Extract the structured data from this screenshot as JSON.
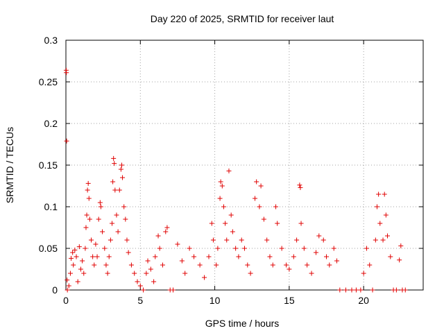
{
  "chart_data": {
    "type": "scatter",
    "title": "Day 220 of 2025, SRMTID for receiver laut",
    "xlabel": "GPS time / hours",
    "ylabel": "SRMTID / TECUs",
    "xlim": [
      0,
      24
    ],
    "ylim": [
      0,
      0.3
    ],
    "xticks": [
      0,
      5,
      10,
      15,
      20
    ],
    "yticks": [
      0,
      0.05,
      0.1,
      0.15,
      0.2,
      0.25,
      0.3
    ],
    "xtick_labels": [
      "0",
      "5",
      "10",
      "15",
      "20"
    ],
    "ytick_labels": [
      "0",
      "0.05",
      "0.1",
      "0.15",
      "0.2",
      "0.25",
      "0.3"
    ],
    "grid": true,
    "marker": "+",
    "color": "#e00000",
    "series": [
      {
        "name": "SRMTID",
        "points": [
          [
            0.02,
            0.264
          ],
          [
            0.03,
            0.261
          ],
          [
            0.05,
            0.179
          ],
          [
            0.08,
            0.012
          ],
          [
            0.1,
            0.0
          ],
          [
            0.2,
            0.005
          ],
          [
            0.3,
            0.02
          ],
          [
            0.35,
            0.038
          ],
          [
            0.45,
            0.045
          ],
          [
            0.5,
            0.03
          ],
          [
            0.6,
            0.048
          ],
          [
            0.7,
            0.04
          ],
          [
            0.8,
            0.01
          ],
          [
            0.9,
            0.052
          ],
          [
            1.0,
            0.025
          ],
          [
            1.1,
            0.035
          ],
          [
            1.2,
            0.02
          ],
          [
            1.3,
            0.05
          ],
          [
            1.35,
            0.075
          ],
          [
            1.4,
            0.09
          ],
          [
            1.45,
            0.12
          ],
          [
            1.5,
            0.128
          ],
          [
            1.55,
            0.11
          ],
          [
            1.6,
            0.085
          ],
          [
            1.7,
            0.06
          ],
          [
            1.8,
            0.04
          ],
          [
            1.9,
            0.03
          ],
          [
            2.0,
            0.055
          ],
          [
            2.1,
            0.04
          ],
          [
            2.2,
            0.085
          ],
          [
            2.3,
            0.105
          ],
          [
            2.35,
            0.1
          ],
          [
            2.45,
            0.07
          ],
          [
            2.6,
            0.05
          ],
          [
            2.7,
            0.03
          ],
          [
            2.8,
            0.02
          ],
          [
            2.9,
            0.04
          ],
          [
            3.0,
            0.06
          ],
          [
            3.1,
            0.08
          ],
          [
            3.15,
            0.13
          ],
          [
            3.2,
            0.158
          ],
          [
            3.25,
            0.152
          ],
          [
            3.3,
            0.12
          ],
          [
            3.4,
            0.09
          ],
          [
            3.5,
            0.07
          ],
          [
            3.6,
            0.12
          ],
          [
            3.7,
            0.145
          ],
          [
            3.75,
            0.15
          ],
          [
            3.8,
            0.135
          ],
          [
            3.9,
            0.1
          ],
          [
            4.0,
            0.085
          ],
          [
            4.1,
            0.06
          ],
          [
            4.2,
            0.045
          ],
          [
            4.4,
            0.03
          ],
          [
            4.6,
            0.02
          ],
          [
            4.8,
            0.01
          ],
          [
            5.0,
            0.005
          ],
          [
            5.2,
            0.0
          ],
          [
            5.4,
            0.02
          ],
          [
            5.5,
            0.035
          ],
          [
            5.7,
            0.025
          ],
          [
            5.9,
            0.01
          ],
          [
            6.0,
            0.04
          ],
          [
            6.2,
            0.065
          ],
          [
            6.3,
            0.05
          ],
          [
            6.5,
            0.03
          ],
          [
            6.7,
            0.07
          ],
          [
            6.8,
            0.075
          ],
          [
            7.0,
            0.0
          ],
          [
            7.2,
            0.0
          ],
          [
            7.5,
            0.055
          ],
          [
            7.8,
            0.035
          ],
          [
            8.0,
            0.02
          ],
          [
            8.3,
            0.05
          ],
          [
            8.6,
            0.04
          ],
          [
            9.0,
            0.03
          ],
          [
            9.3,
            0.015
          ],
          [
            9.6,
            0.04
          ],
          [
            9.8,
            0.08
          ],
          [
            9.9,
            0.06
          ],
          [
            10.1,
            0.03
          ],
          [
            10.2,
            0.05
          ],
          [
            10.35,
            0.11
          ],
          [
            10.4,
            0.13
          ],
          [
            10.5,
            0.125
          ],
          [
            10.6,
            0.1
          ],
          [
            10.7,
            0.08
          ],
          [
            10.8,
            0.06
          ],
          [
            10.95,
            0.143
          ],
          [
            11.1,
            0.09
          ],
          [
            11.2,
            0.07
          ],
          [
            11.4,
            0.05
          ],
          [
            11.6,
            0.04
          ],
          [
            11.8,
            0.06
          ],
          [
            12.0,
            0.05
          ],
          [
            12.2,
            0.03
          ],
          [
            12.4,
            0.02
          ],
          [
            12.7,
            0.11
          ],
          [
            12.8,
            0.13
          ],
          [
            13.0,
            0.1
          ],
          [
            13.1,
            0.125
          ],
          [
            13.3,
            0.085
          ],
          [
            13.5,
            0.06
          ],
          [
            13.7,
            0.04
          ],
          [
            13.9,
            0.03
          ],
          [
            14.1,
            0.1
          ],
          [
            14.2,
            0.08
          ],
          [
            14.5,
            0.05
          ],
          [
            14.8,
            0.03
          ],
          [
            15.0,
            0.025
          ],
          [
            15.3,
            0.04
          ],
          [
            15.5,
            0.06
          ],
          [
            15.7,
            0.126
          ],
          [
            15.75,
            0.123
          ],
          [
            15.8,
            0.08
          ],
          [
            16.0,
            0.05
          ],
          [
            16.2,
            0.03
          ],
          [
            16.5,
            0.02
          ],
          [
            16.8,
            0.045
          ],
          [
            17.0,
            0.065
          ],
          [
            17.3,
            0.06
          ],
          [
            17.5,
            0.04
          ],
          [
            17.7,
            0.03
          ],
          [
            18.0,
            0.05
          ],
          [
            18.2,
            0.035
          ],
          [
            18.4,
            0.0
          ],
          [
            18.8,
            0.0
          ],
          [
            19.2,
            0.0
          ],
          [
            19.5,
            0.0
          ],
          [
            19.8,
            0.0
          ],
          [
            20.0,
            0.02
          ],
          [
            20.2,
            0.05
          ],
          [
            20.4,
            0.03
          ],
          [
            20.6,
            0.0
          ],
          [
            20.8,
            0.06
          ],
          [
            20.9,
            0.1
          ],
          [
            21.0,
            0.115
          ],
          [
            21.1,
            0.08
          ],
          [
            21.3,
            0.06
          ],
          [
            21.4,
            0.115
          ],
          [
            21.5,
            0.09
          ],
          [
            21.6,
            0.065
          ],
          [
            21.8,
            0.04
          ],
          [
            22.0,
            0.0
          ],
          [
            22.2,
            0.0
          ],
          [
            22.4,
            0.036
          ],
          [
            22.5,
            0.053
          ],
          [
            22.6,
            0.0
          ],
          [
            22.8,
            0.0
          ]
        ]
      }
    ]
  }
}
